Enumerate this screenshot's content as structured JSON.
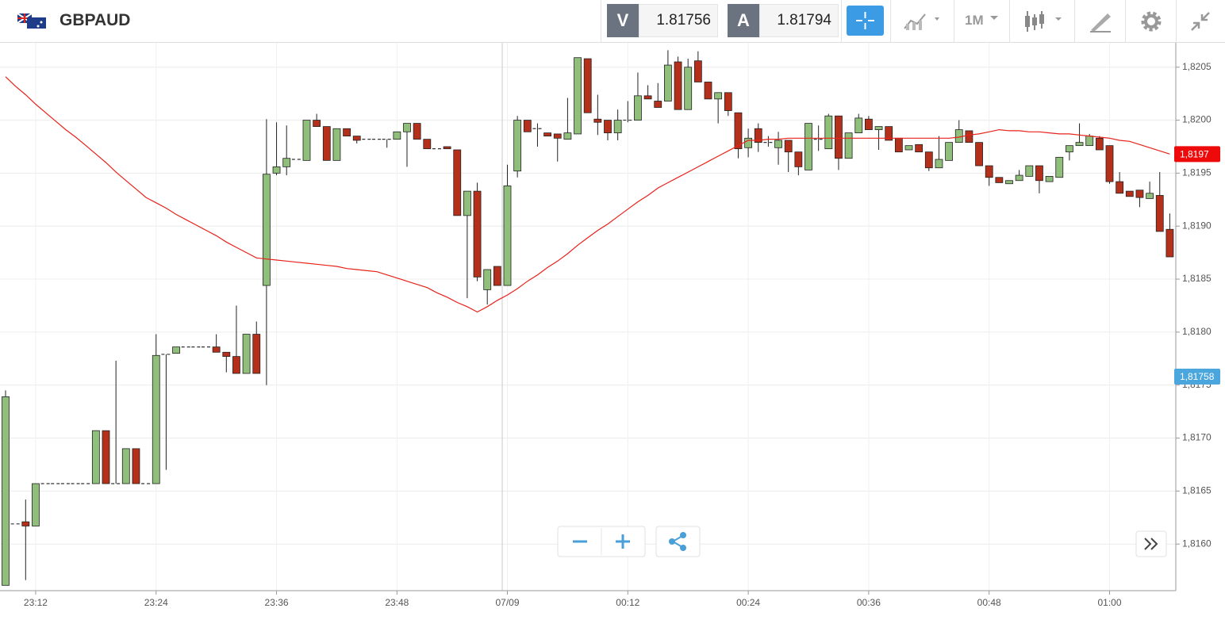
{
  "header": {
    "symbol": "GBPAUD",
    "sell_label": "V",
    "sell_price": "1.81756",
    "buy_label": "A",
    "buy_price": "1.81794",
    "interval": "1M"
  },
  "chart_data": {
    "type": "candlestick",
    "categories": [
      null,
      null,
      null,
      "23:12",
      null,
      null,
      null,
      null,
      null,
      null,
      null,
      null,
      null,
      null,
      null,
      "23:24",
      null,
      null,
      null,
      null,
      null,
      null,
      null,
      null,
      null,
      null,
      null,
      "23:36",
      null,
      null,
      null,
      null,
      null,
      null,
      null,
      null,
      null,
      null,
      null,
      "23:48",
      null,
      null,
      null,
      null,
      null,
      null,
      null,
      null,
      null,
      null,
      "07/09",
      null,
      null,
      null,
      null,
      null,
      null,
      null,
      null,
      null,
      null,
      null,
      "00:12",
      null,
      null,
      null,
      null,
      null,
      null,
      null,
      null,
      null,
      null,
      null,
      "00:24",
      null,
      null,
      null,
      null,
      null,
      null,
      null,
      null,
      null,
      null,
      null,
      "00:36",
      null,
      null,
      null,
      null,
      null,
      null,
      null,
      null,
      null,
      null,
      null,
      "00:48",
      null,
      null,
      null,
      null,
      null,
      null,
      null,
      null,
      null,
      null,
      null,
      "01:00",
      null,
      null,
      null,
      null,
      null,
      null
    ],
    "open": [
      1.81561,
      1.81619,
      1.81621,
      1.81617,
      1.81657,
      1.81657,
      1.81657,
      1.81657,
      1.81657,
      1.81657,
      1.81707,
      1.81657,
      1.81657,
      1.8169,
      1.81657,
      1.81657,
      1.81779,
      1.8178,
      1.81786,
      1.81786,
      1.81786,
      1.81786,
      1.81781,
      1.81777,
      1.81761,
      1.81798,
      1.81844,
      1.8195,
      1.81956,
      1.81963,
      1.81962,
      1.82,
      1.81994,
      1.81962,
      1.81992,
      1.81985,
      1.81982,
      1.81982,
      1.81982,
      1.81982,
      1.81989,
      1.81997,
      1.81982,
      1.81973,
      1.81975,
      1.81972,
      1.8191,
      1.81933,
      1.8184,
      1.81862,
      1.81844,
      1.81952,
      1.82,
      1.81992,
      1.81988,
      1.81987,
      1.81982,
      1.81987,
      1.82058,
      1.82001,
      1.82,
      1.81988,
      1.82,
      1.82,
      1.82023,
      1.82018,
      1.82018,
      1.82055,
      1.8201,
      1.82056,
      1.82036,
      1.8202,
      1.82026,
      1.82007,
      1.81974,
      1.81992,
      1.81979,
      1.81974,
      1.81981,
      1.8197,
      1.81953,
      1.81982,
      1.81973,
      1.82004,
      1.81964,
      1.81988,
      1.82001,
      1.81991,
      1.81994,
      1.81983,
      1.81972,
      1.81977,
      1.8197,
      1.81955,
      1.81962,
      1.81979,
      1.8199,
      1.81979,
      1.81957,
      1.81946,
      1.8194,
      1.81943,
      1.81947,
      1.81957,
      1.81942,
      1.81946,
      1.8197,
      1.81976,
      1.81976,
      1.81983,
      1.81976,
      1.81942,
      1.81933,
      1.81934,
      1.81926,
      1.81929,
      1.81897
    ],
    "high": [
      1.81745,
      1.81619,
      1.81642,
      1.81657,
      1.81657,
      1.81657,
      1.81657,
      1.81657,
      1.81657,
      1.81707,
      1.81707,
      1.81773,
      1.8169,
      1.8169,
      1.81657,
      1.81798,
      1.81779,
      1.81786,
      1.81786,
      1.81786,
      1.81786,
      1.81798,
      1.81781,
      1.81825,
      1.81798,
      1.8181,
      1.82001,
      1.81998,
      1.81995,
      1.81963,
      1.82,
      1.82006,
      1.81994,
      1.81992,
      1.81992,
      1.81985,
      1.81982,
      1.81982,
      1.81982,
      1.81989,
      1.81997,
      1.81997,
      1.81982,
      1.81973,
      1.81975,
      1.81972,
      1.81933,
      1.81941,
      1.81859,
      1.81862,
      1.81958,
      1.82004,
      1.82,
      1.81997,
      1.81988,
      1.81987,
      1.82021,
      1.82059,
      1.82058,
      1.82024,
      1.82,
      1.8201,
      1.82018,
      1.82045,
      1.82033,
      1.82035,
      1.82066,
      1.8206,
      1.82058,
      1.82065,
      1.82036,
      1.82026,
      1.82026,
      1.82007,
      1.81992,
      1.81997,
      1.81985,
      1.81989,
      1.81981,
      1.8197,
      1.81997,
      1.81995,
      1.82006,
      1.82004,
      1.81988,
      1.82006,
      1.82004,
      1.81994,
      1.81994,
      1.81983,
      1.81976,
      1.81977,
      1.8197,
      1.81985,
      1.81979,
      1.82,
      1.8199,
      1.81979,
      1.81957,
      1.81946,
      1.81943,
      1.81953,
      1.81957,
      1.81957,
      1.81947,
      1.81965,
      1.81976,
      1.81997,
      1.81987,
      1.81985,
      1.81976,
      1.81951,
      1.81933,
      1.81934,
      1.81942,
      1.81951,
      1.81912
    ],
    "low": [
      1.81561,
      1.81619,
      1.81566,
      1.81617,
      1.81657,
      1.81657,
      1.81657,
      1.81657,
      1.81657,
      1.81657,
      1.81657,
      1.81657,
      1.81657,
      1.81657,
      1.81657,
      1.81657,
      1.8167,
      1.8178,
      1.81786,
      1.81786,
      1.81786,
      1.81781,
      1.81762,
      1.81761,
      1.81761,
      1.81761,
      1.8175,
      1.81948,
      1.81948,
      1.81963,
      1.81962,
      1.81994,
      1.81962,
      1.81962,
      1.81985,
      1.81978,
      1.81982,
      1.81982,
      1.81974,
      1.81982,
      1.81956,
      1.81982,
      1.81973,
      1.81973,
      1.81973,
      1.8191,
      1.81832,
      1.81848,
      1.81826,
      1.81844,
      1.81844,
      1.81946,
      1.81989,
      1.81975,
      1.81985,
      1.81961,
      1.81982,
      1.81987,
      1.82007,
      1.81986,
      1.81981,
      1.81981,
      1.81998,
      1.82,
      1.8202,
      1.82012,
      1.82018,
      1.8201,
      1.8201,
      1.82036,
      1.8202,
      1.81997,
      1.82004,
      1.81964,
      1.81965,
      1.8197,
      1.81975,
      1.81958,
      1.81951,
      1.81948,
      1.81953,
      1.81971,
      1.81973,
      1.81953,
      1.81964,
      1.81988,
      1.81991,
      1.81972,
      1.81981,
      1.8197,
      1.81972,
      1.8197,
      1.81952,
      1.81955,
      1.81962,
      1.81979,
      1.81979,
      1.81957,
      1.81938,
      1.81941,
      1.8194,
      1.81943,
      1.81947,
      1.81931,
      1.81942,
      1.81946,
      1.81962,
      1.81976,
      1.81976,
      1.81972,
      1.8194,
      1.81931,
      1.81928,
      1.81918,
      1.81926,
      1.81895,
      1.81871
    ],
    "close": [
      1.81739,
      1.81619,
      1.81617,
      1.81657,
      1.81657,
      1.81657,
      1.81657,
      1.81657,
      1.81657,
      1.81707,
      1.81657,
      1.81657,
      1.8169,
      1.81657,
      1.81657,
      1.81778,
      1.81779,
      1.81786,
      1.81786,
      1.81786,
      1.81786,
      1.81781,
      1.81777,
      1.81761,
      1.81798,
      1.81761,
      1.81949,
      1.81956,
      1.81964,
      1.81963,
      1.82,
      1.81994,
      1.81962,
      1.81992,
      1.81985,
      1.81981,
      1.81982,
      1.81982,
      1.81982,
      1.81989,
      1.81997,
      1.81982,
      1.81973,
      1.81973,
      1.81973,
      1.8191,
      1.81933,
      1.81852,
      1.81859,
      1.81844,
      1.81938,
      1.82,
      1.81989,
      1.81992,
      1.81985,
      1.81983,
      1.81988,
      1.82059,
      1.82007,
      1.81998,
      1.81988,
      1.82,
      1.82,
      1.82023,
      1.8202,
      1.82012,
      1.82052,
      1.8201,
      1.8205,
      1.82036,
      1.8202,
      1.82026,
      1.82009,
      1.81973,
      1.81983,
      1.81979,
      1.81979,
      1.81981,
      1.8197,
      1.81956,
      1.81997,
      1.81982,
      1.82004,
      1.81964,
      1.81988,
      1.82002,
      1.81991,
      1.81994,
      1.81981,
      1.8197,
      1.81976,
      1.8197,
      1.81955,
      1.81963,
      1.81979,
      1.81991,
      1.81979,
      1.81957,
      1.81946,
      1.81941,
      1.81943,
      1.81948,
      1.81957,
      1.81943,
      1.81947,
      1.81965,
      1.81976,
      1.81979,
      1.81985,
      1.81972,
      1.81942,
      1.81931,
      1.81928,
      1.81927,
      1.81931,
      1.81895,
      1.81871
    ],
    "up_color": "#8fbf7a",
    "down_color": "#b5301a",
    "flat_color": "#333333",
    "series": [
      {
        "color": "#e8221a",
        "values": [
          1.82041,
          1.82032,
          1.82024,
          1.82015,
          1.82007,
          1.81999,
          1.81991,
          1.81984,
          1.81976,
          1.81968,
          1.8196,
          1.81951,
          1.81943,
          1.81935,
          1.81927,
          1.81922,
          1.81917,
          1.81911,
          1.81906,
          1.81901,
          1.81896,
          1.81891,
          1.81885,
          1.8188,
          1.81875,
          1.8187,
          1.81869,
          1.81868,
          1.81867,
          1.81866,
          1.81865,
          1.81864,
          1.81863,
          1.81862,
          1.8186,
          1.81859,
          1.81858,
          1.81857,
          1.81854,
          1.81851,
          1.81848,
          1.81845,
          1.81842,
          1.81837,
          1.81833,
          1.81828,
          1.81824,
          1.81819,
          1.81824,
          1.8183,
          1.81835,
          1.81841,
          1.81848,
          1.81854,
          1.81861,
          1.81867,
          1.81874,
          1.81882,
          1.81889,
          1.81896,
          1.81902,
          1.81909,
          1.81916,
          1.81923,
          1.81929,
          1.81936,
          1.81941,
          1.81946,
          1.81951,
          1.81956,
          1.81961,
          1.81966,
          1.81971,
          1.81976,
          1.81981,
          1.81981,
          1.81982,
          1.81982,
          1.81983,
          1.81983,
          1.81983,
          1.81983,
          1.81983,
          1.81983,
          1.81983,
          1.81983,
          1.81983,
          1.81983,
          1.81983,
          1.81983,
          1.81983,
          1.81983,
          1.81983,
          1.81983,
          1.81983,
          1.81984,
          1.81986,
          1.81987,
          1.81989,
          1.81991,
          1.8199,
          1.8199,
          1.81989,
          1.81989,
          1.81988,
          1.81987,
          1.81987,
          1.81986,
          1.81985,
          1.81984,
          1.81983,
          1.81981,
          1.8198,
          1.81977,
          1.81974,
          1.81971,
          1.81968
        ]
      }
    ],
    "ylim": [
      1.81556,
      1.82073
    ],
    "yticks": [
      {
        "value": 1.816,
        "label": "1,8160"
      },
      {
        "value": 1.8165,
        "label": "1,8165"
      },
      {
        "value": 1.817,
        "label": "1,8170"
      },
      {
        "value": 1.8175,
        "label": "1,8175"
      },
      {
        "value": 1.818,
        "label": "1,8180"
      },
      {
        "value": 1.8185,
        "label": "1,8185"
      },
      {
        "value": 1.819,
        "label": "1,8190"
      },
      {
        "value": 1.8195,
        "label": "1,8195"
      },
      {
        "value": 1.82,
        "label": "1,8200"
      },
      {
        "value": 1.8205,
        "label": "1,8205"
      }
    ],
    "grid": true,
    "price_tags": [
      {
        "value": 1.81968,
        "label": "1,8197",
        "color": "#ee0a0a"
      },
      {
        "value": 1.81758,
        "label": "1,81758",
        "color": "#4aa6dd"
      }
    ]
  }
}
